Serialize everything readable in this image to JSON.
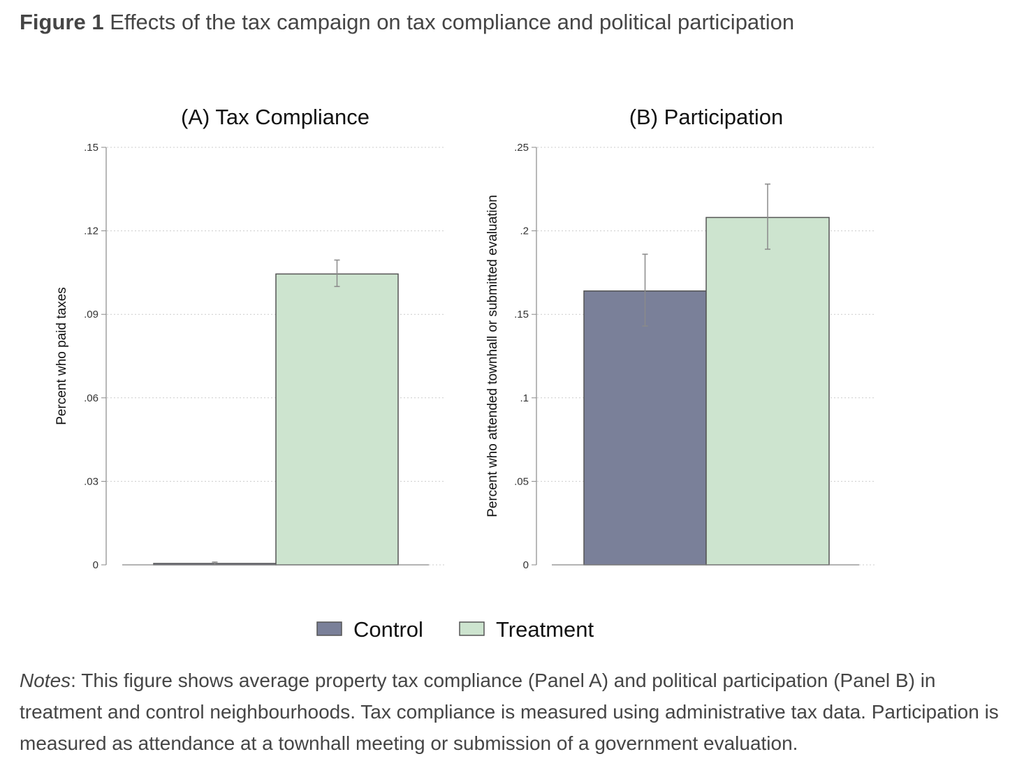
{
  "figure": {
    "label": "Figure 1",
    "title": "Effects of the tax campaign on tax compliance and political participation",
    "notes_label": "Notes",
    "notes_text": ": This figure shows average property tax compliance (Panel A) and political participation (Panel B) in treatment and control neighbourhoods. Tax compliance is measured using administrative tax data. Participation is measured as attendance at a townhall meeting or submission of a government evaluation."
  },
  "colors": {
    "control": "#7a8099",
    "treatment": "#cde4cf",
    "bar_stroke": "#555555",
    "grid": "#cccccc",
    "axis": "#888888",
    "errorbar": "#8a8a8a"
  },
  "chart_data": [
    {
      "type": "bar",
      "title": "(A) Tax Compliance",
      "ylabel": "Percent who paid taxes",
      "xlabel": "",
      "categories": [
        "Control",
        "Treatment"
      ],
      "values": [
        0.0005,
        0.1045
      ],
      "ci": [
        [
          0.0,
          0.001
        ],
        [
          0.1,
          0.1095
        ]
      ],
      "ylim": [
        0,
        0.15
      ],
      "yticks": [
        0,
        0.03,
        0.06,
        0.09,
        0.12,
        0.15
      ],
      "yticklabels": [
        "0",
        ".03",
        ".06",
        ".09",
        ".12",
        ".15"
      ],
      "grid": true
    },
    {
      "type": "bar",
      "title": "(B) Participation",
      "ylabel": "Percent who attended townhall or submitted evaluation",
      "xlabel": "",
      "categories": [
        "Control",
        "Treatment"
      ],
      "values": [
        0.164,
        0.208
      ],
      "ci": [
        [
          0.143,
          0.186
        ],
        [
          0.189,
          0.228
        ]
      ],
      "ylim": [
        0,
        0.25
      ],
      "yticks": [
        0,
        0.05,
        0.1,
        0.15,
        0.2,
        0.25
      ],
      "yticklabels": [
        "0",
        ".05",
        ".1",
        ".15",
        ".2",
        ".25"
      ],
      "grid": true
    }
  ],
  "legend": {
    "position": "bottom",
    "items": [
      "Control",
      "Treatment"
    ]
  }
}
